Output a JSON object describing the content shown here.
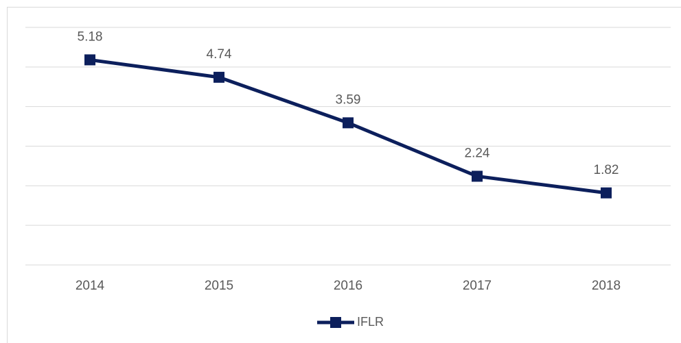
{
  "chart_data": {
    "type": "line",
    "categories": [
      "2014",
      "2015",
      "2016",
      "2017",
      "2018"
    ],
    "series": [
      {
        "name": "IFLR",
        "color": "#0c1f5c",
        "values": [
          5.18,
          4.74,
          3.59,
          2.24,
          1.82
        ]
      }
    ],
    "ylim": [
      0,
      6
    ],
    "yticks": [
      0,
      1,
      2,
      3,
      4,
      5,
      6
    ],
    "grid": true,
    "data_labels": true,
    "legend": "bottom"
  }
}
